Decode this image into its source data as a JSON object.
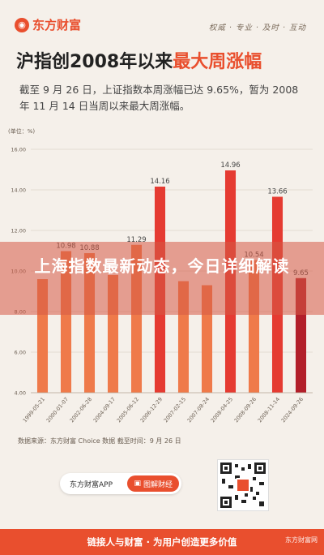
{
  "header": {
    "logo_text": "东方财富",
    "tagline": "权威 · 专业 · 及时 · 互动",
    "title_main": "沪指创2008年以来",
    "title_highlight": "最大周涨幅",
    "subtitle": "截至 9 月 26 日，上证指数本周涨幅已达 9.65%，暂为 2008 年 11 月 14 日当周以来最大周涨幅。"
  },
  "overlay": {
    "headline": "上海指数最新动态，今日详细解读"
  },
  "chart_data": {
    "type": "bar",
    "ylabel": "(单位：%)",
    "ylim": [
      4,
      16
    ],
    "yticks": [
      "4.00",
      "6.00",
      "8.00",
      "10.00",
      "12.00",
      "14.00",
      "16.00"
    ],
    "categories": [
      "1999-05-21",
      "2000-01-07",
      "2002-06-28",
      "2004-09-17",
      "2005-06-12",
      "2006-12-29",
      "2007-02-15",
      "2007-08-24",
      "2008-04-25",
      "2008-09-26",
      "2008-11-14",
      "2024-09-26"
    ],
    "values": [
      9.6,
      10.98,
      10.88,
      9.8,
      11.29,
      14.16,
      9.5,
      9.3,
      14.96,
      10.54,
      13.66,
      9.65
    ],
    "data_labels": [
      "",
      "10.98",
      "10.88",
      "",
      "11.29",
      "14.16",
      "",
      "",
      "14.96",
      "10.54",
      "13.66",
      "9.65"
    ],
    "colors": {
      "normal": "#ef7a4a",
      "highlight": "#e53b32",
      "current": "#b21f2a"
    },
    "highlight_indices": [
      5,
      8,
      10
    ],
    "current_index": 11,
    "grid": true
  },
  "footer": {
    "source": "数据来源：东方财富 Choice 数据   截至时间：9 月 26 日",
    "app_name": "东方财富APP",
    "app_button": "图解财经",
    "bottom_text": "链接人与财富 · 为用户创造更多价值",
    "bottom_brand": "东方财富网"
  }
}
